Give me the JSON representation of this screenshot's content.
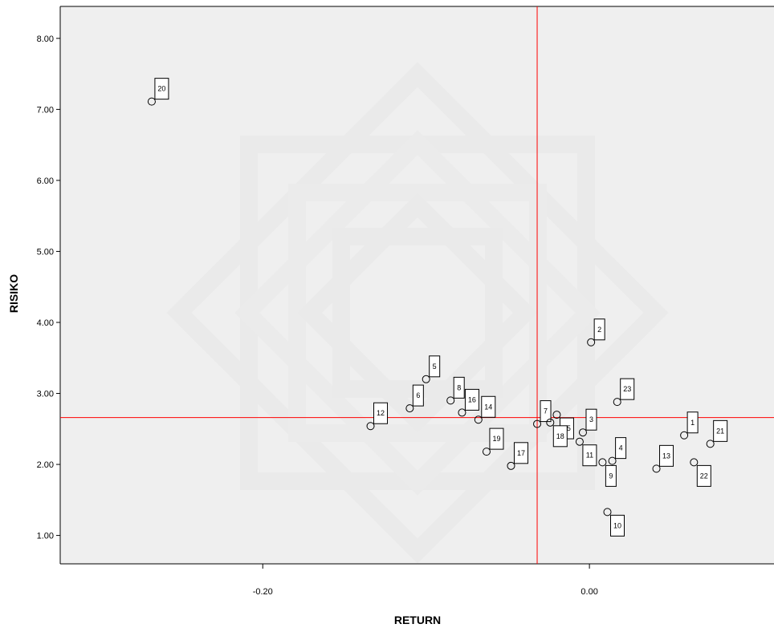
{
  "chart_data": {
    "type": "scatter",
    "xlabel": "RETURN",
    "ylabel": "RISIKO",
    "xlim": [
      -0.324,
      0.113
    ],
    "ylim": [
      0.6,
      8.45
    ],
    "x_ticks": [
      {
        "value": -0.2,
        "label": "-0.20"
      },
      {
        "value": 0.0,
        "label": "0.00"
      }
    ],
    "y_ticks": [
      {
        "value": 1.0,
        "label": "1.00"
      },
      {
        "value": 2.0,
        "label": "2.00"
      },
      {
        "value": 3.0,
        "label": "3.00"
      },
      {
        "value": 4.0,
        "label": "4.00"
      },
      {
        "value": 5.0,
        "label": "5.00"
      },
      {
        "value": 6.0,
        "label": "6.00"
      },
      {
        "value": 7.0,
        "label": "7.00"
      },
      {
        "value": 8.0,
        "label": "8.00"
      }
    ],
    "reference_lines": {
      "x": -0.032,
      "y": 2.66,
      "color": "#ff0000"
    },
    "points": [
      {
        "label": "1",
        "x": 0.058,
        "y": 2.41
      },
      {
        "label": "2",
        "x": 0.001,
        "y": 3.72
      },
      {
        "label": "3",
        "x": -0.004,
        "y": 2.45
      },
      {
        "label": "4",
        "x": 0.014,
        "y": 2.05
      },
      {
        "label": "5",
        "x": -0.1,
        "y": 3.2
      },
      {
        "label": "6",
        "x": -0.11,
        "y": 2.79
      },
      {
        "label": "7",
        "x": -0.032,
        "y": 2.57
      },
      {
        "label": "8",
        "x": -0.085,
        "y": 2.9
      },
      {
        "label": "9",
        "x": 0.008,
        "y": 2.03
      },
      {
        "label": "10",
        "x": 0.011,
        "y": 1.33
      },
      {
        "label": "11",
        "x": -0.006,
        "y": 2.32
      },
      {
        "label": "12",
        "x": -0.134,
        "y": 2.54
      },
      {
        "label": "13",
        "x": 0.041,
        "y": 1.94
      },
      {
        "label": "14",
        "x": -0.068,
        "y": 2.63
      },
      {
        "label": "15",
        "x": -0.02,
        "y": 2.7
      },
      {
        "label": "16",
        "x": -0.078,
        "y": 2.73
      },
      {
        "label": "17",
        "x": -0.048,
        "y": 1.98
      },
      {
        "label": "18",
        "x": -0.024,
        "y": 2.59
      },
      {
        "label": "19",
        "x": -0.063,
        "y": 2.18
      },
      {
        "label": "20",
        "x": -0.268,
        "y": 7.11
      },
      {
        "label": "21",
        "x": 0.074,
        "y": 2.29
      },
      {
        "label": "22",
        "x": 0.064,
        "y": 2.03
      },
      {
        "label": "23",
        "x": 0.017,
        "y": 2.88
      }
    ],
    "label_offsets": {
      "1": "above-right",
      "2": "above-right",
      "3": "above-right",
      "4": "above-right",
      "5": "above-right",
      "6": "above-right",
      "7": "above-right",
      "8": "above-right",
      "9": "below-right",
      "10": "below-right",
      "11": "below-right",
      "12": "above-right",
      "13": "above-right",
      "14": "above-right",
      "15": "below-right",
      "16": "above-right",
      "17": "above-right",
      "18": "below-right",
      "19": "above-right",
      "20": "above-right",
      "21": "above-right",
      "22": "below-right",
      "23": "above-right"
    },
    "plot_background": "#efefef",
    "marker": "open-circle"
  }
}
